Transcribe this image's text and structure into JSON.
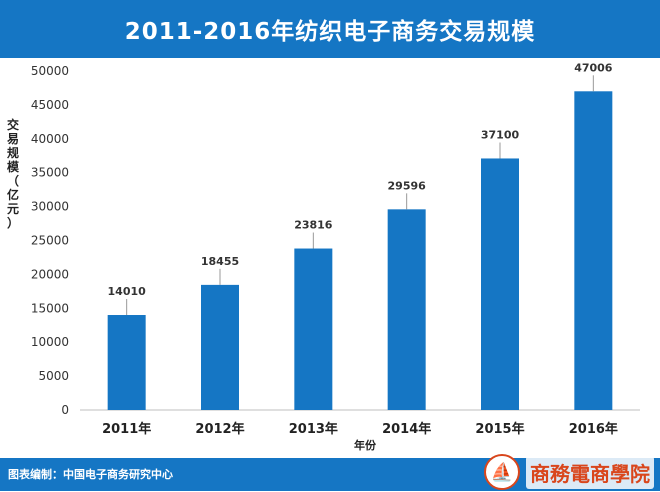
{
  "header": {
    "title": "2011-2016年纺织电子商务交易规模"
  },
  "footer": {
    "source": "图表编制：中国电子商务研究中心",
    "logo_text": "商務電商學院"
  },
  "colors": {
    "accent": "#1576c4",
    "bar": "#1576c4",
    "logo": "#d9461c"
  },
  "chart_data": {
    "type": "bar",
    "title": "2011-2016年纺织电子商务交易规模",
    "categories": [
      "2011年",
      "2012年",
      "2013年",
      "2014年",
      "2015年",
      "2016年"
    ],
    "values": [
      14010,
      18455,
      23816,
      29596,
      37100,
      47006
    ],
    "xlabel": "年份",
    "ylabel": "交易规模（亿元）",
    "ylim": [
      0,
      50000
    ],
    "yticks": [
      0,
      5000,
      10000,
      15000,
      20000,
      25000,
      30000,
      35000,
      40000,
      45000,
      50000
    ],
    "data_labels": true,
    "grid": false,
    "legend": "none"
  }
}
